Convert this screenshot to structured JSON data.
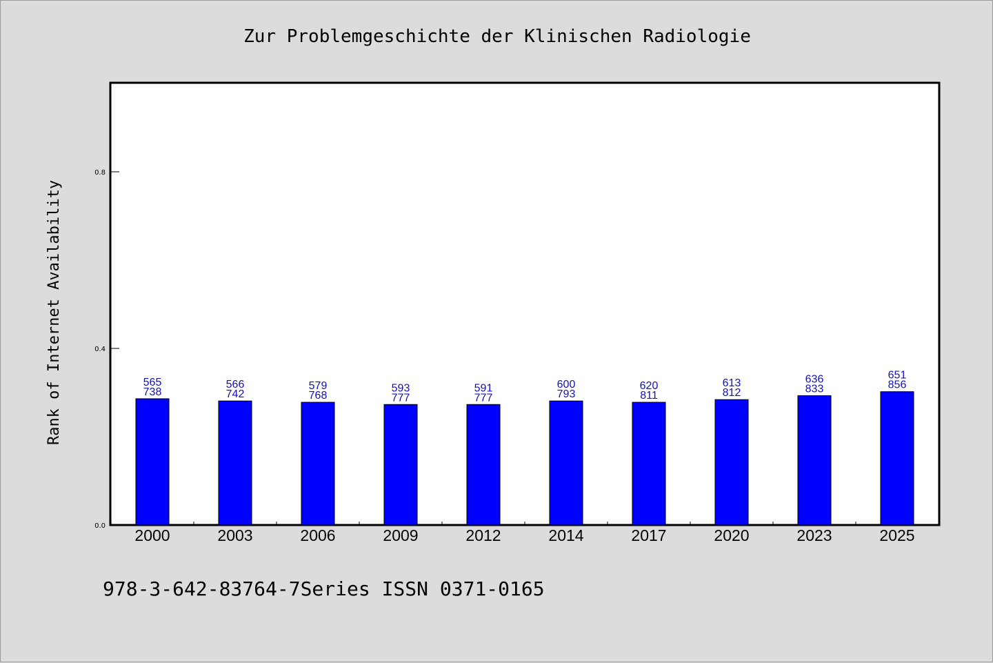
{
  "chart_data": {
    "type": "bar",
    "title": "Zur Problemgeschichte der Klinischen Radiologie",
    "ylabel": "Rank of Internet Availability",
    "xlabel": "",
    "ylim": [
      0.0,
      1.0
    ],
    "yticks": [
      "0.0",
      "0.4",
      "0.8"
    ],
    "ytick_values": [
      0.0,
      0.4,
      0.8
    ],
    "grid": false,
    "categories": [
      "2000",
      "2003",
      "2006",
      "2009",
      "2012",
      "2014",
      "2017",
      "2020",
      "2023",
      "2025"
    ],
    "values": [
      0.286,
      0.281,
      0.278,
      0.273,
      0.273,
      0.281,
      0.278,
      0.284,
      0.293,
      0.302
    ],
    "labels_top": [
      "565",
      "566",
      "579",
      "593",
      "591",
      "600",
      "620",
      "613",
      "636",
      "651"
    ],
    "labels_bottom": [
      "738",
      "742",
      "768",
      "777",
      "777",
      "793",
      "811",
      "812",
      "833",
      "856"
    ],
    "bar_color": "#0000ff",
    "label_color": "#1010c8"
  },
  "footer": {
    "text": "978-3-642-83764-7Series ISSN 0371-0165"
  },
  "colors": {
    "background": "#dcdcdc",
    "plot_background": "#ffffff"
  }
}
